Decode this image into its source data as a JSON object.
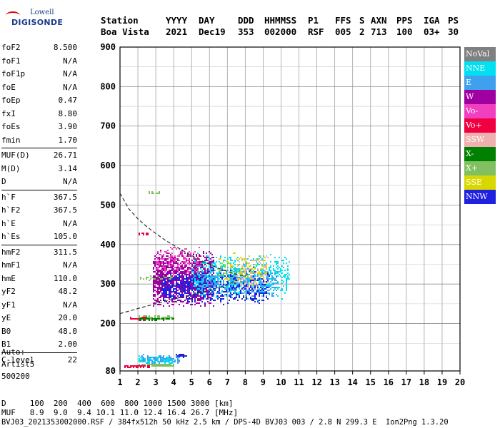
{
  "logo": {
    "line1": "Lowell",
    "line2": "DIGISONDE"
  },
  "header": {
    "labels": [
      "Station",
      "YYYY",
      "DAY",
      "DDD",
      "HHMMSS",
      "P1",
      "FFS",
      "S",
      "AXN",
      "PPS",
      "IGA",
      "PS"
    ],
    "values": [
      "Boa Vista",
      "2021",
      "Dec19",
      "353",
      "002000",
      "RSF",
      "005",
      "2",
      "713",
      "100",
      "03+",
      "30"
    ]
  },
  "params": [
    {
      "group": [
        {
          "k": "foF2",
          "v": "8.500"
        },
        {
          "k": "foF1",
          "v": "N/A"
        },
        {
          "k": "foF1p",
          "v": "N/A"
        },
        {
          "k": "foE",
          "v": "N/A"
        },
        {
          "k": "foEp",
          "v": "0.47"
        },
        {
          "k": "fxI",
          "v": "8.80"
        },
        {
          "k": "foEs",
          "v": "3.90"
        },
        {
          "k": "fmin",
          "v": "1.70"
        }
      ]
    },
    {
      "group": [
        {
          "k": "MUF(D)",
          "v": "26.71"
        },
        {
          "k": "M(D)",
          "v": "3.14"
        },
        {
          "k": "D",
          "v": "N/A"
        }
      ]
    },
    {
      "group": [
        {
          "k": "h`F",
          "v": "367.5"
        },
        {
          "k": "h`F2",
          "v": "367.5"
        },
        {
          "k": "h`E",
          "v": "N/A"
        },
        {
          "k": "h`Es",
          "v": "105.0"
        }
      ]
    },
    {
      "group": [
        {
          "k": "hmF2",
          "v": "311.5"
        },
        {
          "k": "hmF1",
          "v": "N/A"
        },
        {
          "k": "hmE",
          "v": "110.0"
        },
        {
          "k": "yF2",
          "v": "48.2"
        },
        {
          "k": "yF1",
          "v": "N/A"
        },
        {
          "k": "yE",
          "v": "20.0"
        },
        {
          "k": "B0",
          "v": "48.0"
        },
        {
          "k": "B1",
          "v": "2.00"
        }
      ]
    },
    {
      "group": [
        {
          "k": "C-level",
          "v": "22"
        }
      ]
    }
  ],
  "auto": [
    "Auto:",
    "Artist5",
    "500200"
  ],
  "legend": [
    {
      "label": "NoVal",
      "color": "#808080"
    },
    {
      "label": "NNE",
      "color": "#00e0f0"
    },
    {
      "label": "E",
      "color": "#40a0f0"
    },
    {
      "label": "W",
      "color": "#a000a0"
    },
    {
      "label": "Vo-",
      "color": "#f040c0"
    },
    {
      "label": "Vo+",
      "color": "#f00040"
    },
    {
      "label": "SSW",
      "color": "#f0b0b0"
    },
    {
      "label": "X-",
      "color": "#008000"
    },
    {
      "label": "X+",
      "color": "#80c060"
    },
    {
      "label": "SSE",
      "color": "#d8d800"
    },
    {
      "label": "NNW",
      "color": "#2020e0"
    }
  ],
  "footer": {
    "d_row": "D     100  200  400  600  800 1000 1500 3000 [km]",
    "muf_row": "MUF   8.9  9.0  9.4 10.1 11.0 12.4 16.4 26.7 [MHz]",
    "file_row": "BVJ03_2021353002000.RSF / 384fx512h 50 kHz 2.5 km / DPS-4D BVJ03 003 / 2.8 N 299.3 E  Ion2Png 1.3.20"
  },
  "chart_data": {
    "type": "scatter",
    "xlim": [
      1,
      20
    ],
    "ylim": [
      80,
      900
    ],
    "x_ticks": [
      1,
      2,
      3,
      4,
      5,
      6,
      7,
      8,
      9,
      10,
      11,
      12,
      13,
      14,
      15,
      16,
      17,
      18,
      19,
      20
    ],
    "y_ticks": [
      80,
      200,
      300,
      400,
      500,
      600,
      700,
      800,
      900
    ],
    "grid": true,
    "legend_position": "right",
    "profile_curve": {
      "x": [
        1.0,
        1.5,
        2.0,
        2.5,
        3.0,
        3.5,
        4.0,
        4.5,
        5.0,
        5.5,
        6.0,
        6.5,
        7.0,
        7.5,
        8.0,
        8.5
      ],
      "y": [
        530,
        490,
        465,
        445,
        428,
        412,
        398,
        385,
        372,
        360,
        350,
        340,
        332,
        325,
        320,
        345
      ],
      "underside_x": [
        1.0,
        2.0,
        3.0,
        4.0,
        5.0,
        6.0,
        7.0,
        7.5
      ],
      "underside_y": [
        225,
        238,
        250,
        262,
        272,
        285,
        298,
        310
      ]
    },
    "clusters": [
      {
        "name": "W",
        "color": "#a000a0",
        "x": [
          2.8,
          6.2
        ],
        "y": [
          240,
          390
        ],
        "n": 1400
      },
      {
        "name": "NNW",
        "color": "#2020e0",
        "x": [
          3.3,
          9.3
        ],
        "y": [
          250,
          340
        ],
        "n": 900
      },
      {
        "name": "NNE",
        "color": "#00e0f0",
        "x": [
          5.0,
          10.4
        ],
        "y": [
          260,
          380
        ],
        "n": 650
      },
      {
        "name": "E",
        "color": "#40a0f0",
        "x": [
          5.5,
          9.8
        ],
        "y": [
          265,
          345
        ],
        "n": 350
      },
      {
        "name": "Vo-",
        "color": "#f040c0",
        "x": [
          3.0,
          5.5
        ],
        "y": [
          320,
          400
        ],
        "n": 180
      },
      {
        "name": "SSW",
        "color": "#f0b0b0",
        "x": [
          7.5,
          9.2
        ],
        "y": [
          275,
          380
        ],
        "n": 120
      },
      {
        "name": "SSE",
        "color": "#d8d800",
        "x": [
          6.5,
          9.2
        ],
        "y": [
          290,
          390
        ],
        "n": 110
      },
      {
        "name": "X+",
        "color": "#80c060",
        "x": [
          2.0,
          4.0
        ],
        "y": [
          310,
          325
        ],
        "n": 30
      },
      {
        "name": "Es-NNE",
        "color": "#00e0f0",
        "x": [
          2.0,
          3.9
        ],
        "y": [
          100,
          120
        ],
        "n": 140
      },
      {
        "name": "Es-E",
        "color": "#40a0f0",
        "x": [
          2.2,
          4.3
        ],
        "y": [
          98,
          125
        ],
        "n": 90
      },
      {
        "name": "Es-X+",
        "color": "#80c060",
        "x": [
          2.0,
          4.0
        ],
        "y": [
          93,
          100
        ],
        "n": 80
      },
      {
        "name": "Es-Vo+",
        "color": "#f00040",
        "x": [
          1.2,
          2.6
        ],
        "y": [
          90,
          96
        ],
        "n": 60
      },
      {
        "name": "Es-NNW",
        "color": "#2020e0",
        "x": [
          4.0,
          4.8
        ],
        "y": [
          115,
          125
        ],
        "n": 20
      },
      {
        "name": "E-Vo+",
        "color": "#f00040",
        "x": [
          1.5,
          2.6
        ],
        "y": [
          210,
          218
        ],
        "n": 50
      },
      {
        "name": "E-X+",
        "color": "#80c060",
        "x": [
          2.0,
          4.0
        ],
        "y": [
          212,
          222
        ],
        "n": 60
      },
      {
        "name": "E-X-",
        "color": "#008000",
        "x": [
          2.0,
          4.0
        ],
        "y": [
          210,
          216
        ],
        "n": 40
      },
      {
        "name": "F-Vo+",
        "color": "#f00040",
        "x": [
          2.0,
          2.6
        ],
        "y": [
          425,
          432
        ],
        "n": 12
      },
      {
        "name": "F-X+",
        "color": "#80c060",
        "x": [
          2.5,
          3.3
        ],
        "y": [
          530,
          535
        ],
        "n": 10
      }
    ]
  }
}
